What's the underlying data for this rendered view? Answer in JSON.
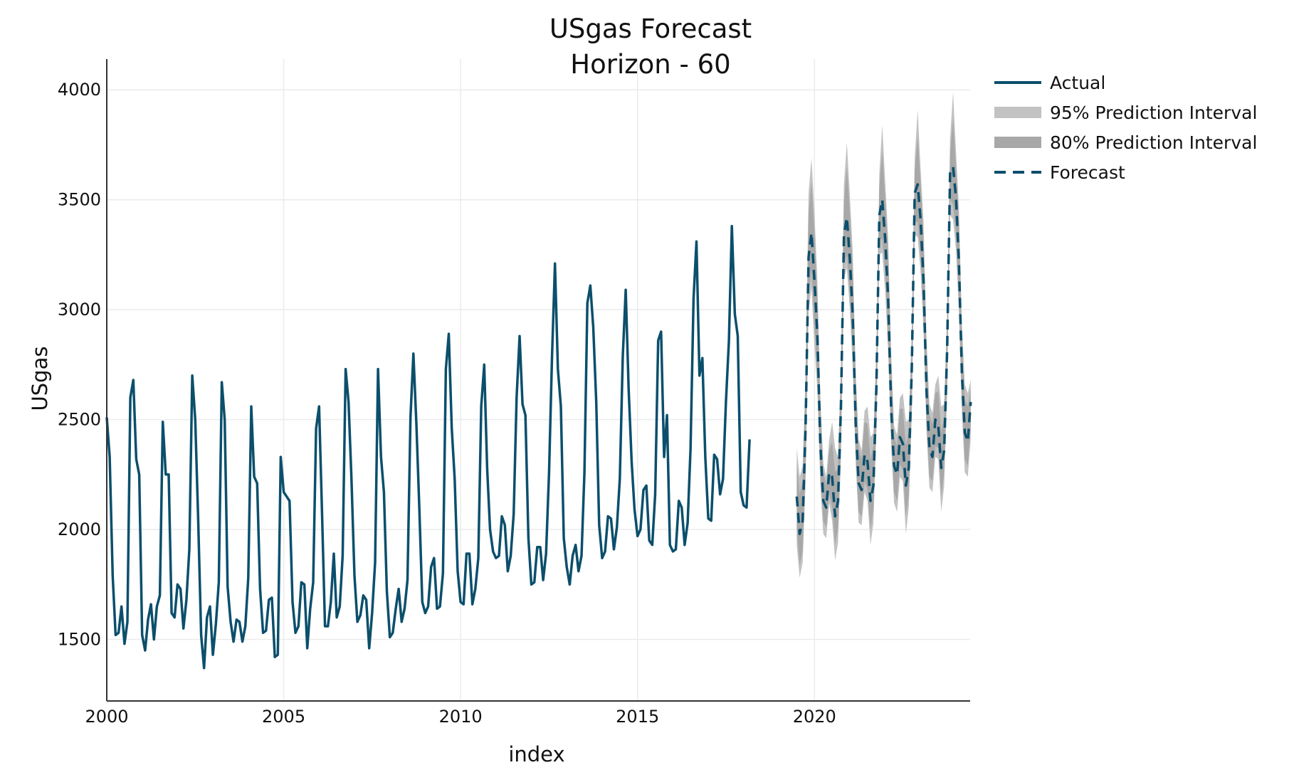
{
  "chart_data": {
    "type": "line",
    "title": "USgas Forecast",
    "subtitle": "Horizon -  60",
    "xlabel": "index",
    "ylabel": "USgas",
    "xlim": [
      2000,
      2024.4
    ],
    "ylim": [
      1220,
      4140
    ],
    "x_ticks": [
      2000,
      2005,
      2010,
      2015,
      2020
    ],
    "x_tick_labels": [
      "2000",
      "2005",
      "2010",
      "2015",
      "2020"
    ],
    "y_ticks": [
      1500,
      2000,
      2500,
      3000,
      3500,
      4000
    ],
    "y_tick_labels": [
      "1500",
      "2000",
      "2500",
      "3000",
      "3500",
      "4000"
    ],
    "grid": true,
    "legend_position": "top-right",
    "colors": {
      "line": "#0b4f6c",
      "pi95": "#c2c2c2",
      "pi80": "#a8a8a8",
      "axis": "#333333",
      "grid": "#ebebeb"
    },
    "legend": [
      {
        "label": "Actual",
        "style": "solid-line"
      },
      {
        "label": "95% Prediction Interval",
        "style": "band-95"
      },
      {
        "label": "80% Prediction Interval",
        "style": "band-80"
      },
      {
        "label": "Forecast",
        "style": "dashed-line"
      }
    ],
    "series": [
      {
        "name": "Actual",
        "x_start": 2000.0,
        "x_step": 0.08333,
        "values": [
          2510,
          2330,
          1790,
          1520,
          1530,
          1650,
          1480,
          1580,
          2600,
          2680,
          2320,
          2250,
          1520,
          1450,
          1590,
          1660,
          1500,
          1650,
          1700,
          2490,
          2250,
          2250,
          1620,
          1600,
          1750,
          1730,
          1550,
          1680,
          1910,
          2700,
          2500,
          2050,
          1520,
          1370,
          1600,
          1650,
          1430,
          1570,
          1760,
          2670,
          2500,
          1740,
          1580,
          1490,
          1590,
          1580,
          1490,
          1560,
          1780,
          2560,
          2240,
          2210,
          1730,
          1530,
          1540,
          1680,
          1690,
          1420,
          1430,
          2330,
          2170,
          2150,
          2130,
          1670,
          1530,
          1560,
          1760,
          1750,
          1460,
          1640,
          1760,
          2460,
          2560,
          2080,
          1560,
          1560,
          1670,
          1890,
          1600,
          1650,
          1880,
          2730,
          2580,
          2230,
          1790,
          1580,
          1610,
          1700,
          1680,
          1460,
          1620,
          1850,
          2730,
          2330,
          2170,
          1720,
          1510,
          1530,
          1640,
          1730,
          1580,
          1640,
          1770,
          2510,
          2800,
          2480,
          2100,
          1670,
          1620,
          1650,
          1830,
          1870,
          1640,
          1650,
          1800,
          2730,
          2890,
          2460,
          2230,
          1810,
          1670,
          1660,
          1890,
          1890,
          1660,
          1730,
          1870,
          2560,
          2750,
          2280,
          2000,
          1900,
          1870,
          1880,
          2060,
          2020,
          1810,
          1880,
          2070,
          2600,
          2880,
          2570,
          2520,
          1960,
          1750,
          1760,
          1920,
          1920,
          1770,
          1890,
          2260,
          2780,
          3210,
          2730,
          2560,
          1960,
          1830,
          1750,
          1880,
          1930,
          1810,
          1880,
          2260,
          3030,
          3110,
          2920,
          2580,
          2020,
          1870,
          1900,
          2060,
          2050,
          1910,
          2010,
          2230,
          2790,
          3090,
          2640,
          2310,
          2090,
          1970,
          2000,
          2180,
          2200,
          1950,
          1930,
          2160,
          2860,
          2900,
          2330,
          2520,
          1930,
          1900,
          1910,
          2130,
          2100,
          1930,
          2030,
          2370,
          3050,
          3310,
          2700,
          2780,
          2330,
          2050,
          2040,
          2340,
          2320,
          2160,
          2230,
          2580,
          2860,
          3380,
          2980,
          2880,
          2170,
          2110,
          2100,
          2410
        ]
      },
      {
        "name": "Forecast",
        "x_start": 2019.5,
        "x_step": 0.08333,
        "values": [
          2150,
          1980,
          2040,
          2460,
          3240,
          3350,
          3130,
          2880,
          2390,
          2130,
          2100,
          2260,
          2240,
          2060,
          2130,
          2560,
          3340,
          3420,
          3230,
          2970,
          2470,
          2210,
          2180,
          2340,
          2310,
          2130,
          2200,
          2650,
          3430,
          3500,
          3320,
          3050,
          2550,
          2290,
          2250,
          2420,
          2390,
          2200,
          2280,
          2730,
          3530,
          3570,
          3410,
          3130,
          2630,
          2370,
          2330,
          2500,
          2470,
          2280,
          2360,
          2820,
          3620,
          3650,
          3510,
          3220,
          2710,
          2440,
          2400,
          2580
        ]
      },
      {
        "name": "95% Prediction Interval",
        "x_start": 2019.5,
        "x_step": 0.08333,
        "upper": [
          2370,
          2240,
          2290,
          2710,
          3530,
          3690,
          3440,
          3130,
          2610,
          2300,
          2240,
          2410,
          2490,
          2370,
          2330,
          2750,
          3570,
          3760,
          3520,
          3260,
          2710,
          2410,
          2360,
          2540,
          2560,
          2420,
          2440,
          2820,
          3620,
          3840,
          3580,
          3330,
          2810,
          2470,
          2430,
          2600,
          2620,
          2490,
          2500,
          2910,
          3690,
          3910,
          3640,
          3400,
          2870,
          2570,
          2530,
          2660,
          2700,
          2560,
          2570,
          2990,
          3780,
          3990,
          3720,
          3470,
          2940,
          2660,
          2620,
          2680
        ],
        "lower": [
          1930,
          1780,
          1850,
          2210,
          2990,
          3100,
          2830,
          2630,
          2200,
          1980,
          1960,
          2120,
          2040,
          1860,
          1940,
          2320,
          3140,
          3190,
          3000,
          2730,
          2290,
          2030,
          2020,
          2170,
          2130,
          1930,
          2030,
          2440,
          3250,
          3260,
          3080,
          2810,
          2380,
          2120,
          2080,
          2240,
          2220,
          1980,
          2100,
          2510,
          3340,
          3330,
          3170,
          2900,
          2440,
          2190,
          2170,
          2330,
          2320,
          2080,
          2200,
          2620,
          3430,
          3410,
          3270,
          2990,
          2530,
          2260,
          2240,
          2410
        ]
      },
      {
        "name": "80% Prediction Interval",
        "x_start": 2019.5,
        "x_step": 0.08333,
        "upper": [
          2300,
          2160,
          2220,
          2640,
          3440,
          3580,
          3350,
          3060,
          2550,
          2260,
          2200,
          2360,
          2400,
          2260,
          2280,
          2700,
          3490,
          3650,
          3440,
          3180,
          2660,
          2370,
          2320,
          2490,
          2480,
          2320,
          2380,
          2780,
          3560,
          3720,
          3510,
          3260,
          2740,
          2420,
          2380,
          2550,
          2550,
          2380,
          2450,
          2860,
          3630,
          3790,
          3580,
          3330,
          2810,
          2520,
          2480,
          2620,
          2630,
          2440,
          2520,
          2930,
          3710,
          3870,
          3650,
          3400,
          2880,
          2590,
          2560,
          2640
        ],
        "lower": [
          2000,
          1840,
          1900,
          2290,
          3070,
          3180,
          2920,
          2710,
          2260,
          2040,
          2010,
          2160,
          2100,
          1930,
          2010,
          2400,
          3200,
          3250,
          3070,
          2800,
          2340,
          2080,
          2060,
          2220,
          2180,
          2000,
          2090,
          2510,
          3320,
          3320,
          3160,
          2890,
          2430,
          2170,
          2130,
          2300,
          2270,
          2060,
          2160,
          2570,
          3400,
          3400,
          3240,
          2970,
          2500,
          2240,
          2220,
          2380,
          2370,
          2150,
          2260,
          2690,
          3500,
          3480,
          3350,
          3060,
          2590,
          2320,
          2290,
          2470
        ]
      }
    ]
  }
}
